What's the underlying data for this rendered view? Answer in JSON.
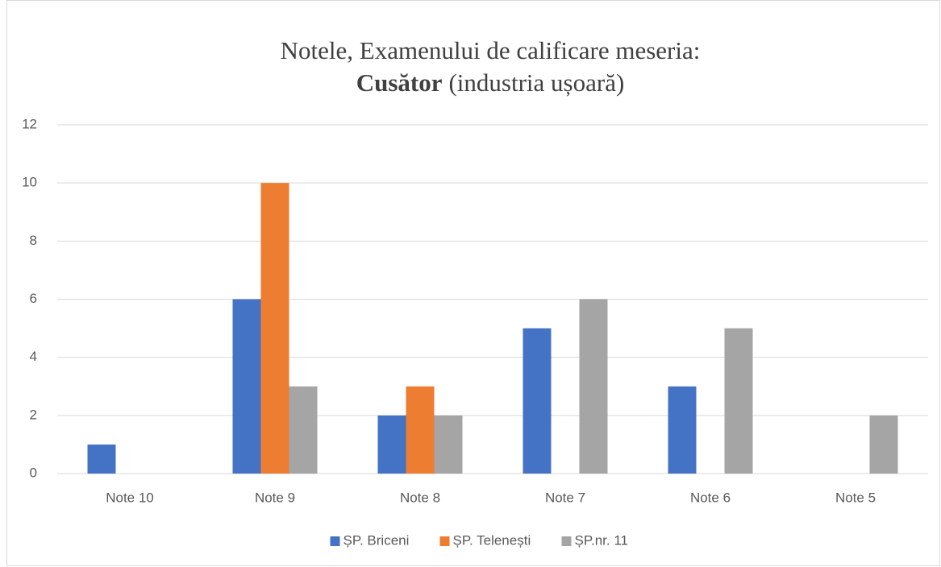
{
  "chart_data": {
    "type": "bar",
    "title": [
      "Notele, Examenului de calificare meseria:",
      "Cusător",
      "(industria ușoară)"
    ],
    "categories": [
      "Note 10",
      "Note 9",
      "Note 8",
      "Note 7",
      "Note 6",
      "Note 5"
    ],
    "series": [
      {
        "name": "ȘP. Briceni",
        "color": "#4472c4",
        "values": [
          1,
          6,
          2,
          5,
          3,
          0
        ]
      },
      {
        "name": "ȘP. Telenești",
        "color": "#ed7d31",
        "values": [
          0,
          10,
          3,
          0,
          0,
          0
        ]
      },
      {
        "name": "ȘP.nr. 11",
        "color": "#a5a5a5",
        "values": [
          0,
          3,
          2,
          6,
          5,
          2
        ]
      }
    ],
    "ylim": [
      0,
      12
    ],
    "yticks": [
      0,
      2,
      4,
      6,
      8,
      10,
      12
    ],
    "grid": true,
    "legend": "bottom"
  }
}
